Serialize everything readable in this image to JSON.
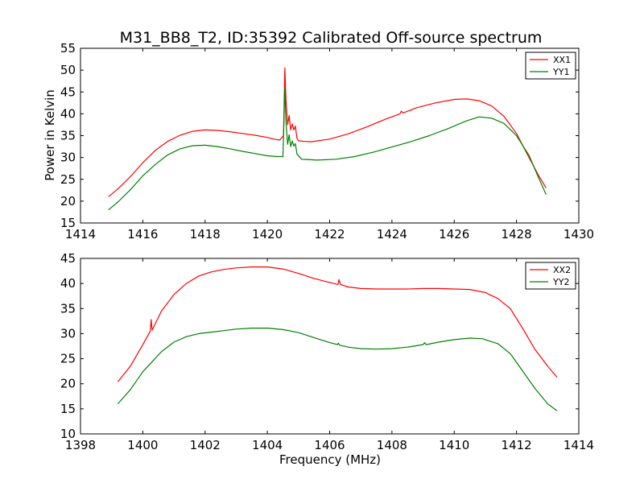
{
  "title": "M31_BB8_T2, ID:35392 Calibrated Off-source spectrum",
  "chart_data": [
    {
      "type": "line",
      "title": "M31_BB8_T2, ID:35392 Calibrated Off-source spectrum",
      "xlabel": "",
      "ylabel": "Power in Kelvin",
      "xlim": [
        1414,
        1430
      ],
      "ylim": [
        15,
        55
      ],
      "xticks": [
        "1414",
        "1416",
        "1418",
        "1420",
        "1422",
        "1424",
        "1426",
        "1428",
        "1430"
      ],
      "yticks": [
        "15",
        "20",
        "25",
        "30",
        "35",
        "40",
        "45",
        "50",
        "55"
      ],
      "legend": "top-right",
      "series": [
        {
          "name": "XX1",
          "color": "#ff0000",
          "points": [
            [
              1414.9,
              21.0
            ],
            [
              1415.2,
              22.8
            ],
            [
              1415.6,
              25.6
            ],
            [
              1416.0,
              28.8
            ],
            [
              1416.4,
              31.6
            ],
            [
              1416.8,
              33.7
            ],
            [
              1417.2,
              35.1
            ],
            [
              1417.6,
              36.0
            ],
            [
              1418.0,
              36.3
            ],
            [
              1418.4,
              36.2
            ],
            [
              1418.8,
              35.9
            ],
            [
              1419.2,
              35.5
            ],
            [
              1419.6,
              35.1
            ],
            [
              1420.0,
              34.6
            ],
            [
              1420.2,
              34.2
            ],
            [
              1420.4,
              34.0
            ],
            [
              1420.52,
              35.0
            ],
            [
              1420.56,
              50.5
            ],
            [
              1420.6,
              43.0
            ],
            [
              1420.65,
              37.5
            ],
            [
              1420.7,
              39.6
            ],
            [
              1420.75,
              36.3
            ],
            [
              1420.8,
              37.7
            ],
            [
              1420.85,
              36.3
            ],
            [
              1420.9,
              37.2
            ],
            [
              1420.95,
              34.4
            ],
            [
              1421.0,
              33.8
            ],
            [
              1421.4,
              33.6
            ],
            [
              1422.0,
              34.2
            ],
            [
              1422.6,
              35.4
            ],
            [
              1423.2,
              37.0
            ],
            [
              1423.8,
              38.8
            ],
            [
              1424.26,
              40.0
            ],
            [
              1424.3,
              40.6
            ],
            [
              1424.36,
              40.2
            ],
            [
              1424.8,
              41.4
            ],
            [
              1425.4,
              42.5
            ],
            [
              1426.0,
              43.3
            ],
            [
              1426.4,
              43.4
            ],
            [
              1426.8,
              43.0
            ],
            [
              1427.2,
              41.8
            ],
            [
              1427.6,
              39.4
            ],
            [
              1428.0,
              35.5
            ],
            [
              1428.4,
              30.0
            ],
            [
              1428.7,
              26.0
            ],
            [
              1428.95,
              23.0
            ]
          ]
        },
        {
          "name": "YY1",
          "color": "#008000",
          "points": [
            [
              1414.9,
              18.0
            ],
            [
              1415.2,
              19.8
            ],
            [
              1415.6,
              22.6
            ],
            [
              1416.0,
              25.8
            ],
            [
              1416.4,
              28.4
            ],
            [
              1416.8,
              30.6
            ],
            [
              1417.2,
              32.0
            ],
            [
              1417.6,
              32.7
            ],
            [
              1418.0,
              32.8
            ],
            [
              1418.4,
              32.5
            ],
            [
              1418.8,
              32.0
            ],
            [
              1419.2,
              31.4
            ],
            [
              1419.6,
              30.9
            ],
            [
              1420.0,
              30.4
            ],
            [
              1420.3,
              30.2
            ],
            [
              1420.5,
              30.2
            ],
            [
              1420.56,
              46.0
            ],
            [
              1420.6,
              38.0
            ],
            [
              1420.65,
              33.0
            ],
            [
              1420.7,
              35.2
            ],
            [
              1420.75,
              32.5
            ],
            [
              1420.8,
              33.8
            ],
            [
              1420.85,
              32.6
            ],
            [
              1420.9,
              33.2
            ],
            [
              1420.95,
              30.8
            ],
            [
              1421.1,
              29.6
            ],
            [
              1421.6,
              29.4
            ],
            [
              1422.2,
              29.6
            ],
            [
              1422.8,
              30.2
            ],
            [
              1423.4,
              31.2
            ],
            [
              1424.0,
              32.4
            ],
            [
              1424.6,
              33.6
            ],
            [
              1425.2,
              35.0
            ],
            [
              1425.8,
              36.6
            ],
            [
              1426.4,
              38.4
            ],
            [
              1426.8,
              39.3
            ],
            [
              1427.2,
              39.0
            ],
            [
              1427.6,
              37.8
            ],
            [
              1428.0,
              35.0
            ],
            [
              1428.4,
              30.5
            ],
            [
              1428.7,
              25.5
            ],
            [
              1428.95,
              21.5
            ]
          ]
        }
      ]
    },
    {
      "type": "line",
      "title": "",
      "xlabel": "Frequency (MHz)",
      "ylabel": "",
      "xlim": [
        1398,
        1414
      ],
      "ylim": [
        10,
        45
      ],
      "xticks": [
        "1398",
        "1400",
        "1402",
        "1404",
        "1406",
        "1408",
        "1410",
        "1412",
        "1414"
      ],
      "yticks": [
        "10",
        "15",
        "20",
        "25",
        "30",
        "35",
        "40",
        "45"
      ],
      "legend": "top-right",
      "series": [
        {
          "name": "XX2",
          "color": "#ff0000",
          "points": [
            [
              1399.2,
              20.4
            ],
            [
              1399.6,
              23.5
            ],
            [
              1400.0,
              27.8
            ],
            [
              1400.24,
              30.5
            ],
            [
              1400.27,
              32.8
            ],
            [
              1400.3,
              30.7
            ],
            [
              1400.6,
              34.5
            ],
            [
              1401.0,
              37.8
            ],
            [
              1401.4,
              40.0
            ],
            [
              1401.8,
              41.5
            ],
            [
              1402.2,
              42.3
            ],
            [
              1402.6,
              42.8
            ],
            [
              1403.0,
              43.1
            ],
            [
              1403.5,
              43.3
            ],
            [
              1404.0,
              43.3
            ],
            [
              1404.5,
              42.9
            ],
            [
              1405.0,
              42.0
            ],
            [
              1405.5,
              41.0
            ],
            [
              1406.0,
              40.2
            ],
            [
              1406.27,
              39.8
            ],
            [
              1406.3,
              40.8
            ],
            [
              1406.35,
              39.8
            ],
            [
              1406.6,
              39.3
            ],
            [
              1407.0,
              39.0
            ],
            [
              1407.5,
              38.9
            ],
            [
              1408.0,
              38.9
            ],
            [
              1408.5,
              38.9
            ],
            [
              1409.0,
              39.0
            ],
            [
              1409.5,
              39.0
            ],
            [
              1410.0,
              38.9
            ],
            [
              1410.5,
              38.8
            ],
            [
              1411.0,
              38.2
            ],
            [
              1411.4,
              37.0
            ],
            [
              1411.8,
              35.0
            ],
            [
              1412.2,
              31.0
            ],
            [
              1412.6,
              26.8
            ],
            [
              1413.0,
              23.5
            ],
            [
              1413.3,
              21.3
            ]
          ]
        },
        {
          "name": "YY2",
          "color": "#008000",
          "points": [
            [
              1399.2,
              16.0
            ],
            [
              1399.6,
              18.8
            ],
            [
              1400.0,
              22.4
            ],
            [
              1400.3,
              24.4
            ],
            [
              1400.6,
              26.4
            ],
            [
              1401.0,
              28.3
            ],
            [
              1401.4,
              29.4
            ],
            [
              1401.8,
              30.0
            ],
            [
              1402.2,
              30.3
            ],
            [
              1402.6,
              30.6
            ],
            [
              1403.0,
              30.9
            ],
            [
              1403.5,
              31.1
            ],
            [
              1404.0,
              31.1
            ],
            [
              1404.5,
              30.8
            ],
            [
              1405.0,
              30.2
            ],
            [
              1405.5,
              29.2
            ],
            [
              1406.0,
              28.2
            ],
            [
              1406.25,
              27.8
            ],
            [
              1406.28,
              28.1
            ],
            [
              1406.32,
              27.7
            ],
            [
              1406.6,
              27.3
            ],
            [
              1407.0,
              27.0
            ],
            [
              1407.5,
              26.9
            ],
            [
              1408.0,
              27.0
            ],
            [
              1408.5,
              27.3
            ],
            [
              1409.0,
              27.8
            ],
            [
              1409.05,
              28.2
            ],
            [
              1409.1,
              27.8
            ],
            [
              1409.5,
              28.3
            ],
            [
              1410.0,
              28.8
            ],
            [
              1410.5,
              29.1
            ],
            [
              1410.9,
              29.0
            ],
            [
              1411.4,
              28.0
            ],
            [
              1411.8,
              26.0
            ],
            [
              1412.2,
              22.5
            ],
            [
              1412.6,
              19.0
            ],
            [
              1413.0,
              16.0
            ],
            [
              1413.3,
              14.6
            ]
          ]
        }
      ]
    }
  ]
}
